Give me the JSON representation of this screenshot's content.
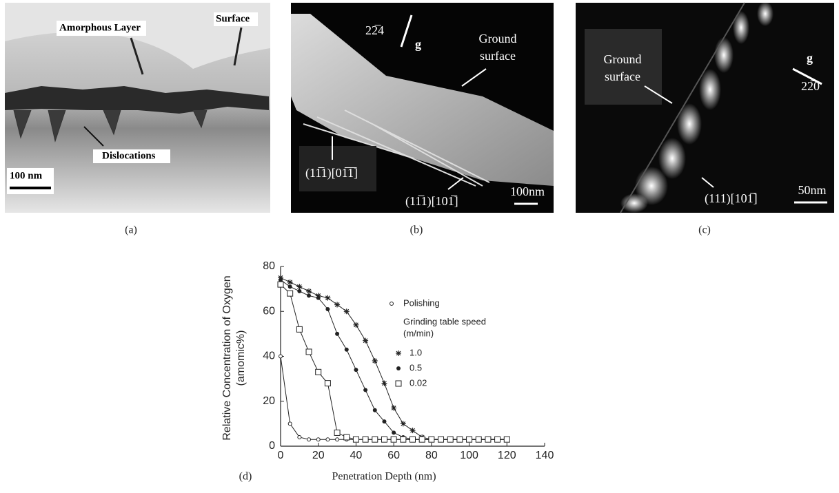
{
  "panels": [
    {
      "caption": "(a)",
      "labels": [
        "Amorphous Layer",
        "Surface",
        "Dislocations",
        "100 nm"
      ]
    },
    {
      "caption": "(b)",
      "labels": [
        "22̅4",
        "g",
        "Ground",
        "surface",
        "(11̅1)[01̅1̅]",
        "(11̅1)[101̅]",
        "100nm"
      ]
    },
    {
      "caption": "(c)",
      "labels": [
        "Ground",
        "surface",
        "g",
        "22̅0",
        "(111)[101̅]",
        "50nm"
      ]
    }
  ],
  "chart_data": {
    "type": "line",
    "caption": "(d)",
    "xlabel": "Penetration Depth (nm)",
    "ylabel": [
      "Relative Concentration of Oxygen",
      "(amomic%)"
    ],
    "xlim": [
      0,
      140
    ],
    "xticks": [
      0,
      20,
      40,
      60,
      80,
      100,
      120,
      140
    ],
    "ylim": [
      0,
      80
    ],
    "yticks": [
      0,
      20,
      40,
      60,
      80
    ],
    "legend_title": [
      "Grinding table speed",
      "(m/min)"
    ],
    "x": [
      0,
      5,
      10,
      15,
      20,
      25,
      30,
      35,
      40,
      45,
      50,
      55,
      60,
      65,
      70,
      75,
      80,
      85,
      90,
      95,
      100,
      105,
      110,
      115,
      120
    ],
    "series": [
      {
        "name": "Polishing",
        "color": "#222222",
        "marker": "circle-open",
        "values": [
          40,
          10,
          4,
          3,
          3,
          3,
          3,
          3,
          3,
          3,
          3,
          3,
          3,
          3,
          3,
          3,
          3,
          3,
          3,
          3,
          3,
          3,
          3,
          3,
          3
        ]
      },
      {
        "name": "1.0",
        "color": "#222222",
        "marker": "star",
        "values": [
          75,
          73,
          71,
          69,
          67,
          66,
          63,
          60,
          54,
          47,
          38,
          28,
          17,
          10,
          7,
          4,
          3,
          3,
          3,
          3,
          3,
          3,
          3,
          3,
          3
        ]
      },
      {
        "name": "0.5",
        "color": "#222222",
        "marker": "circle",
        "values": [
          74,
          71,
          69,
          67,
          66,
          61,
          50,
          43,
          34,
          25,
          16,
          11,
          6,
          4,
          3,
          3,
          3,
          3,
          3,
          3,
          3,
          3,
          3,
          3,
          3
        ]
      },
      {
        "name": "0.02",
        "color": "#222222",
        "marker": "square-open",
        "values": [
          72,
          68,
          52,
          42,
          33,
          28,
          6,
          4,
          3,
          3,
          3,
          3,
          3,
          3,
          3,
          3,
          3,
          3,
          3,
          3,
          3,
          3,
          3,
          3,
          3
        ]
      }
    ]
  }
}
